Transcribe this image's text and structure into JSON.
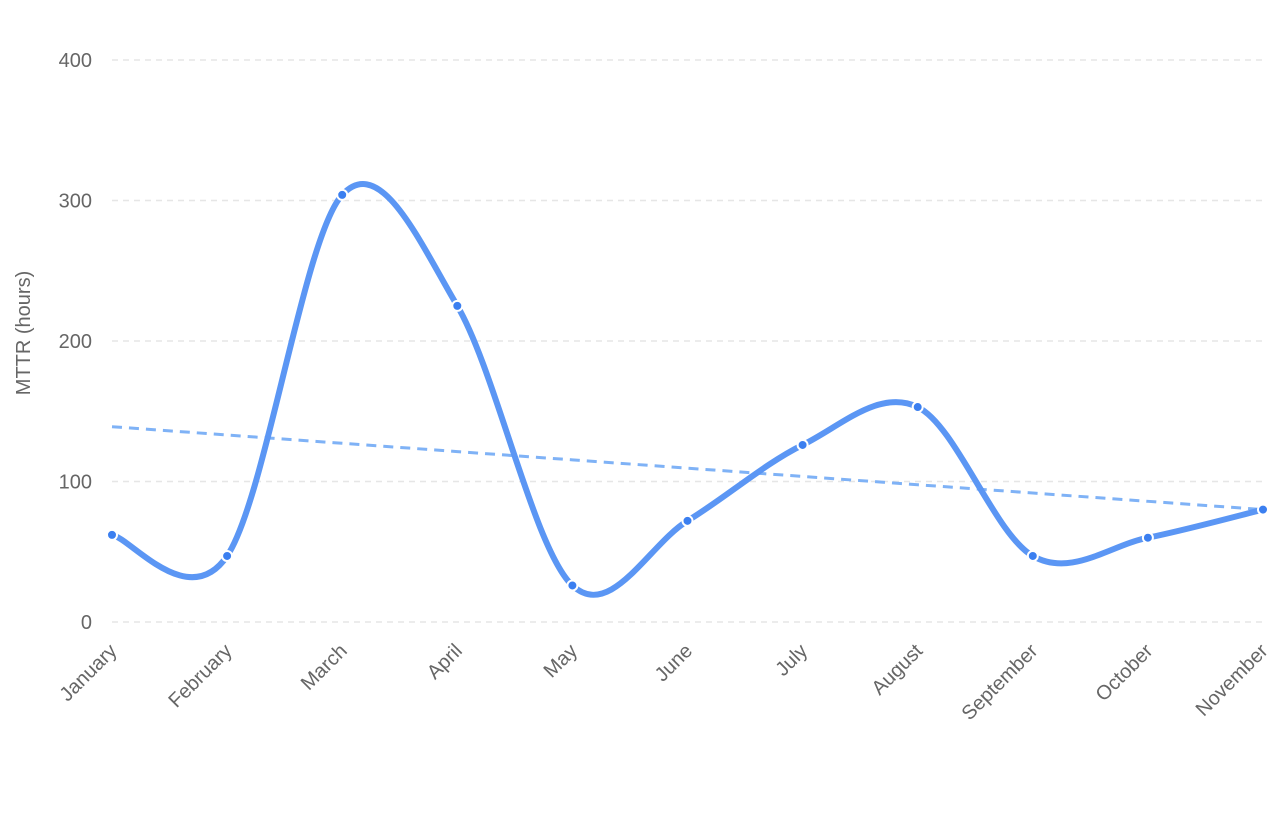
{
  "chart_data": {
    "type": "line",
    "title": "",
    "xlabel": "",
    "ylabel": "MTTR (hours)",
    "ylim": [
      0,
      400
    ],
    "yticks": [
      0,
      100,
      200,
      300,
      400
    ],
    "grid": true,
    "categories": [
      "January",
      "February",
      "March",
      "April",
      "May",
      "June",
      "July",
      "August",
      "September",
      "October",
      "November"
    ],
    "series": [
      {
        "values": [
          62,
          47,
          304,
          225,
          26,
          72,
          126,
          153,
          47,
          60,
          80
        ],
        "color": "#5b96f4",
        "style": "solid",
        "markers": true
      },
      {
        "values": [
          139,
          133.1,
          127.2,
          121.3,
          115.4,
          109.5,
          103.6,
          97.7,
          91.8,
          85.9,
          80
        ],
        "color": "#7fb2f6",
        "style": "dashed",
        "markers": false
      }
    ]
  }
}
